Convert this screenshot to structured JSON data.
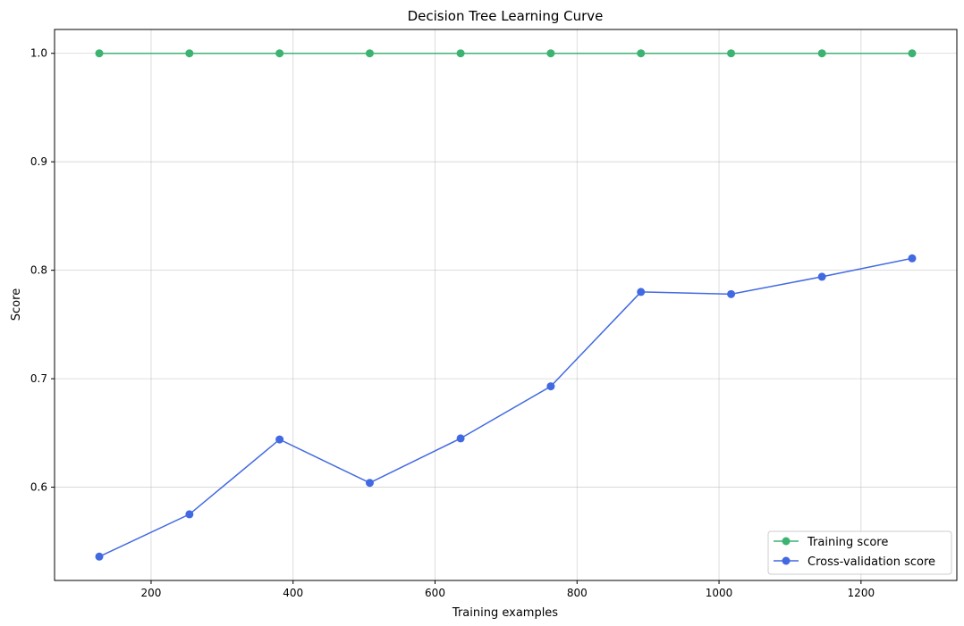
{
  "chart_data": {
    "type": "line",
    "title": "Decision Tree Learning Curve",
    "xlabel": "Training examples",
    "ylabel": "Score",
    "xlim": [
      64,
      1335
    ],
    "ylim": [
      0.514,
      1.022
    ],
    "xticks": [
      200,
      400,
      600,
      800,
      1000,
      1200
    ],
    "yticks": [
      0.6,
      0.7,
      0.8,
      0.9,
      1.0
    ],
    "xtick_labels": [
      "200",
      "400",
      "600",
      "800",
      "1000",
      "1200"
    ],
    "ytick_labels": [
      "0.6",
      "0.7",
      "0.8",
      "0.9",
      "1.0"
    ],
    "grid": true,
    "legend_position": "lower-right",
    "x": [
      127,
      254,
      381,
      508,
      636,
      763,
      890,
      1017,
      1145,
      1272
    ],
    "series": [
      {
        "name": "Training score",
        "color": "#3cb371",
        "values": [
          1.0,
          1.0,
          1.0,
          1.0,
          1.0,
          1.0,
          1.0,
          1.0,
          1.0,
          1.0
        ]
      },
      {
        "name": "Cross-validation score",
        "color": "#4169e1",
        "values": [
          0.536,
          0.575,
          0.644,
          0.604,
          0.645,
          0.693,
          0.78,
          0.778,
          0.794,
          0.811
        ]
      }
    ]
  }
}
